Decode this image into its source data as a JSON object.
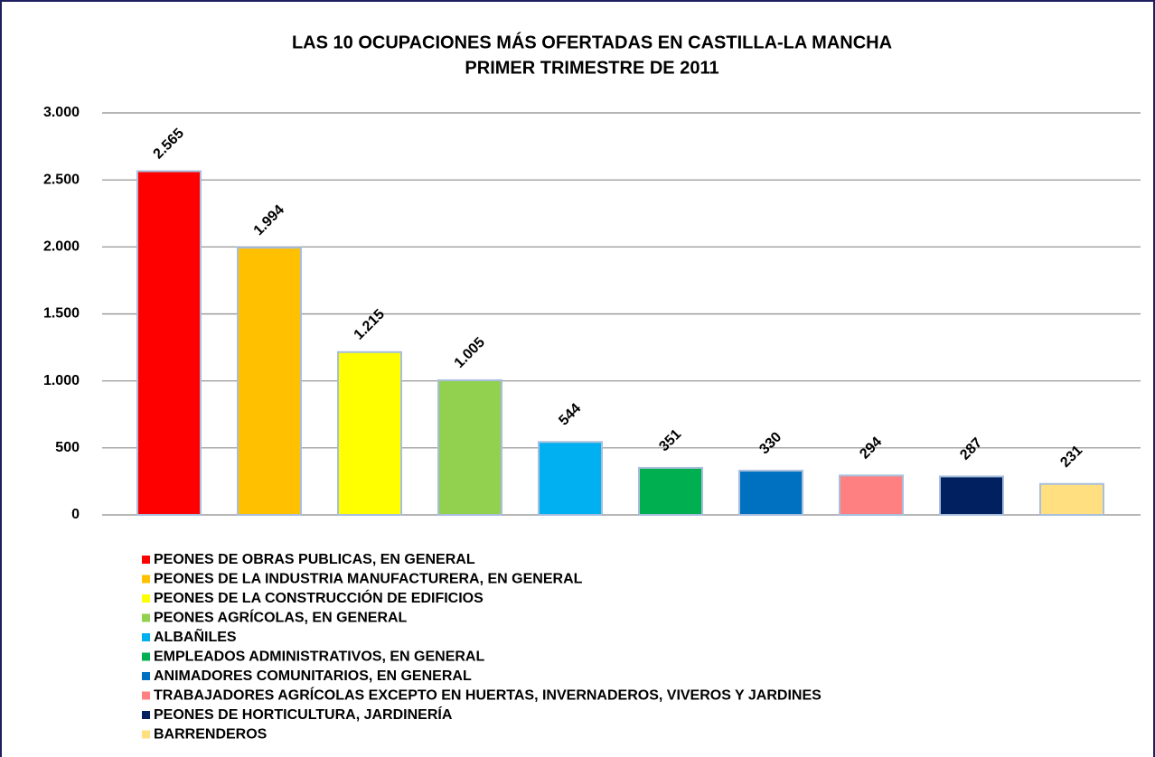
{
  "chart_data": {
    "type": "bar",
    "title": "LAS 10 OCUPACIONES MÁS OFERTADAS EN CASTILLA-LA MANCHA",
    "subtitle": "PRIMER TRIMESTRE DE 2011",
    "categories": [
      "PEONES DE OBRAS PUBLICAS, EN GENERAL",
      "PEONES DE LA INDUSTRIA MANUFACTURERA, EN GENERAL",
      "PEONES DE LA CONSTRUCCIÓN DE EDIFICIOS",
      "PEONES AGRÍCOLAS, EN GENERAL",
      "ALBAÑILES",
      "EMPLEADOS ADMINISTRATIVOS, EN GENERAL",
      "ANIMADORES COMUNITARIOS, EN GENERAL",
      "TRABAJADORES AGRÍCOLAS EXCEPTO EN HUERTAS, INVERNADEROS, VIVEROS Y JARDINES",
      "PEONES DE HORTICULTURA, JARDINERÍA",
      "BARRENDEROS"
    ],
    "values": [
      2565,
      1994,
      1215,
      1005,
      544,
      351,
      330,
      294,
      287,
      231
    ],
    "value_labels": [
      "2.565",
      "1.994",
      "1.215",
      "1.005",
      "544",
      "351",
      "330",
      "294",
      "287",
      "231"
    ],
    "colors": [
      "#ff0000",
      "#ffc000",
      "#ffff00",
      "#92d050",
      "#00b0f0",
      "#00b050",
      "#0070c0",
      "#ff8080",
      "#002060",
      "#ffdf80"
    ],
    "ylim": [
      0,
      3000
    ],
    "yticks": [
      0,
      500,
      {
        "value": 1000,
        "label": "1.000"
      },
      {
        "value": 1500,
        "label": "1.500"
      },
      {
        "value": 2000,
        "label": "2.000"
      },
      {
        "value": 2500,
        "label": "2.500"
      },
      {
        "value": 3000,
        "label": "3.000"
      }
    ],
    "grid": true,
    "legend": "bottom-left"
  }
}
